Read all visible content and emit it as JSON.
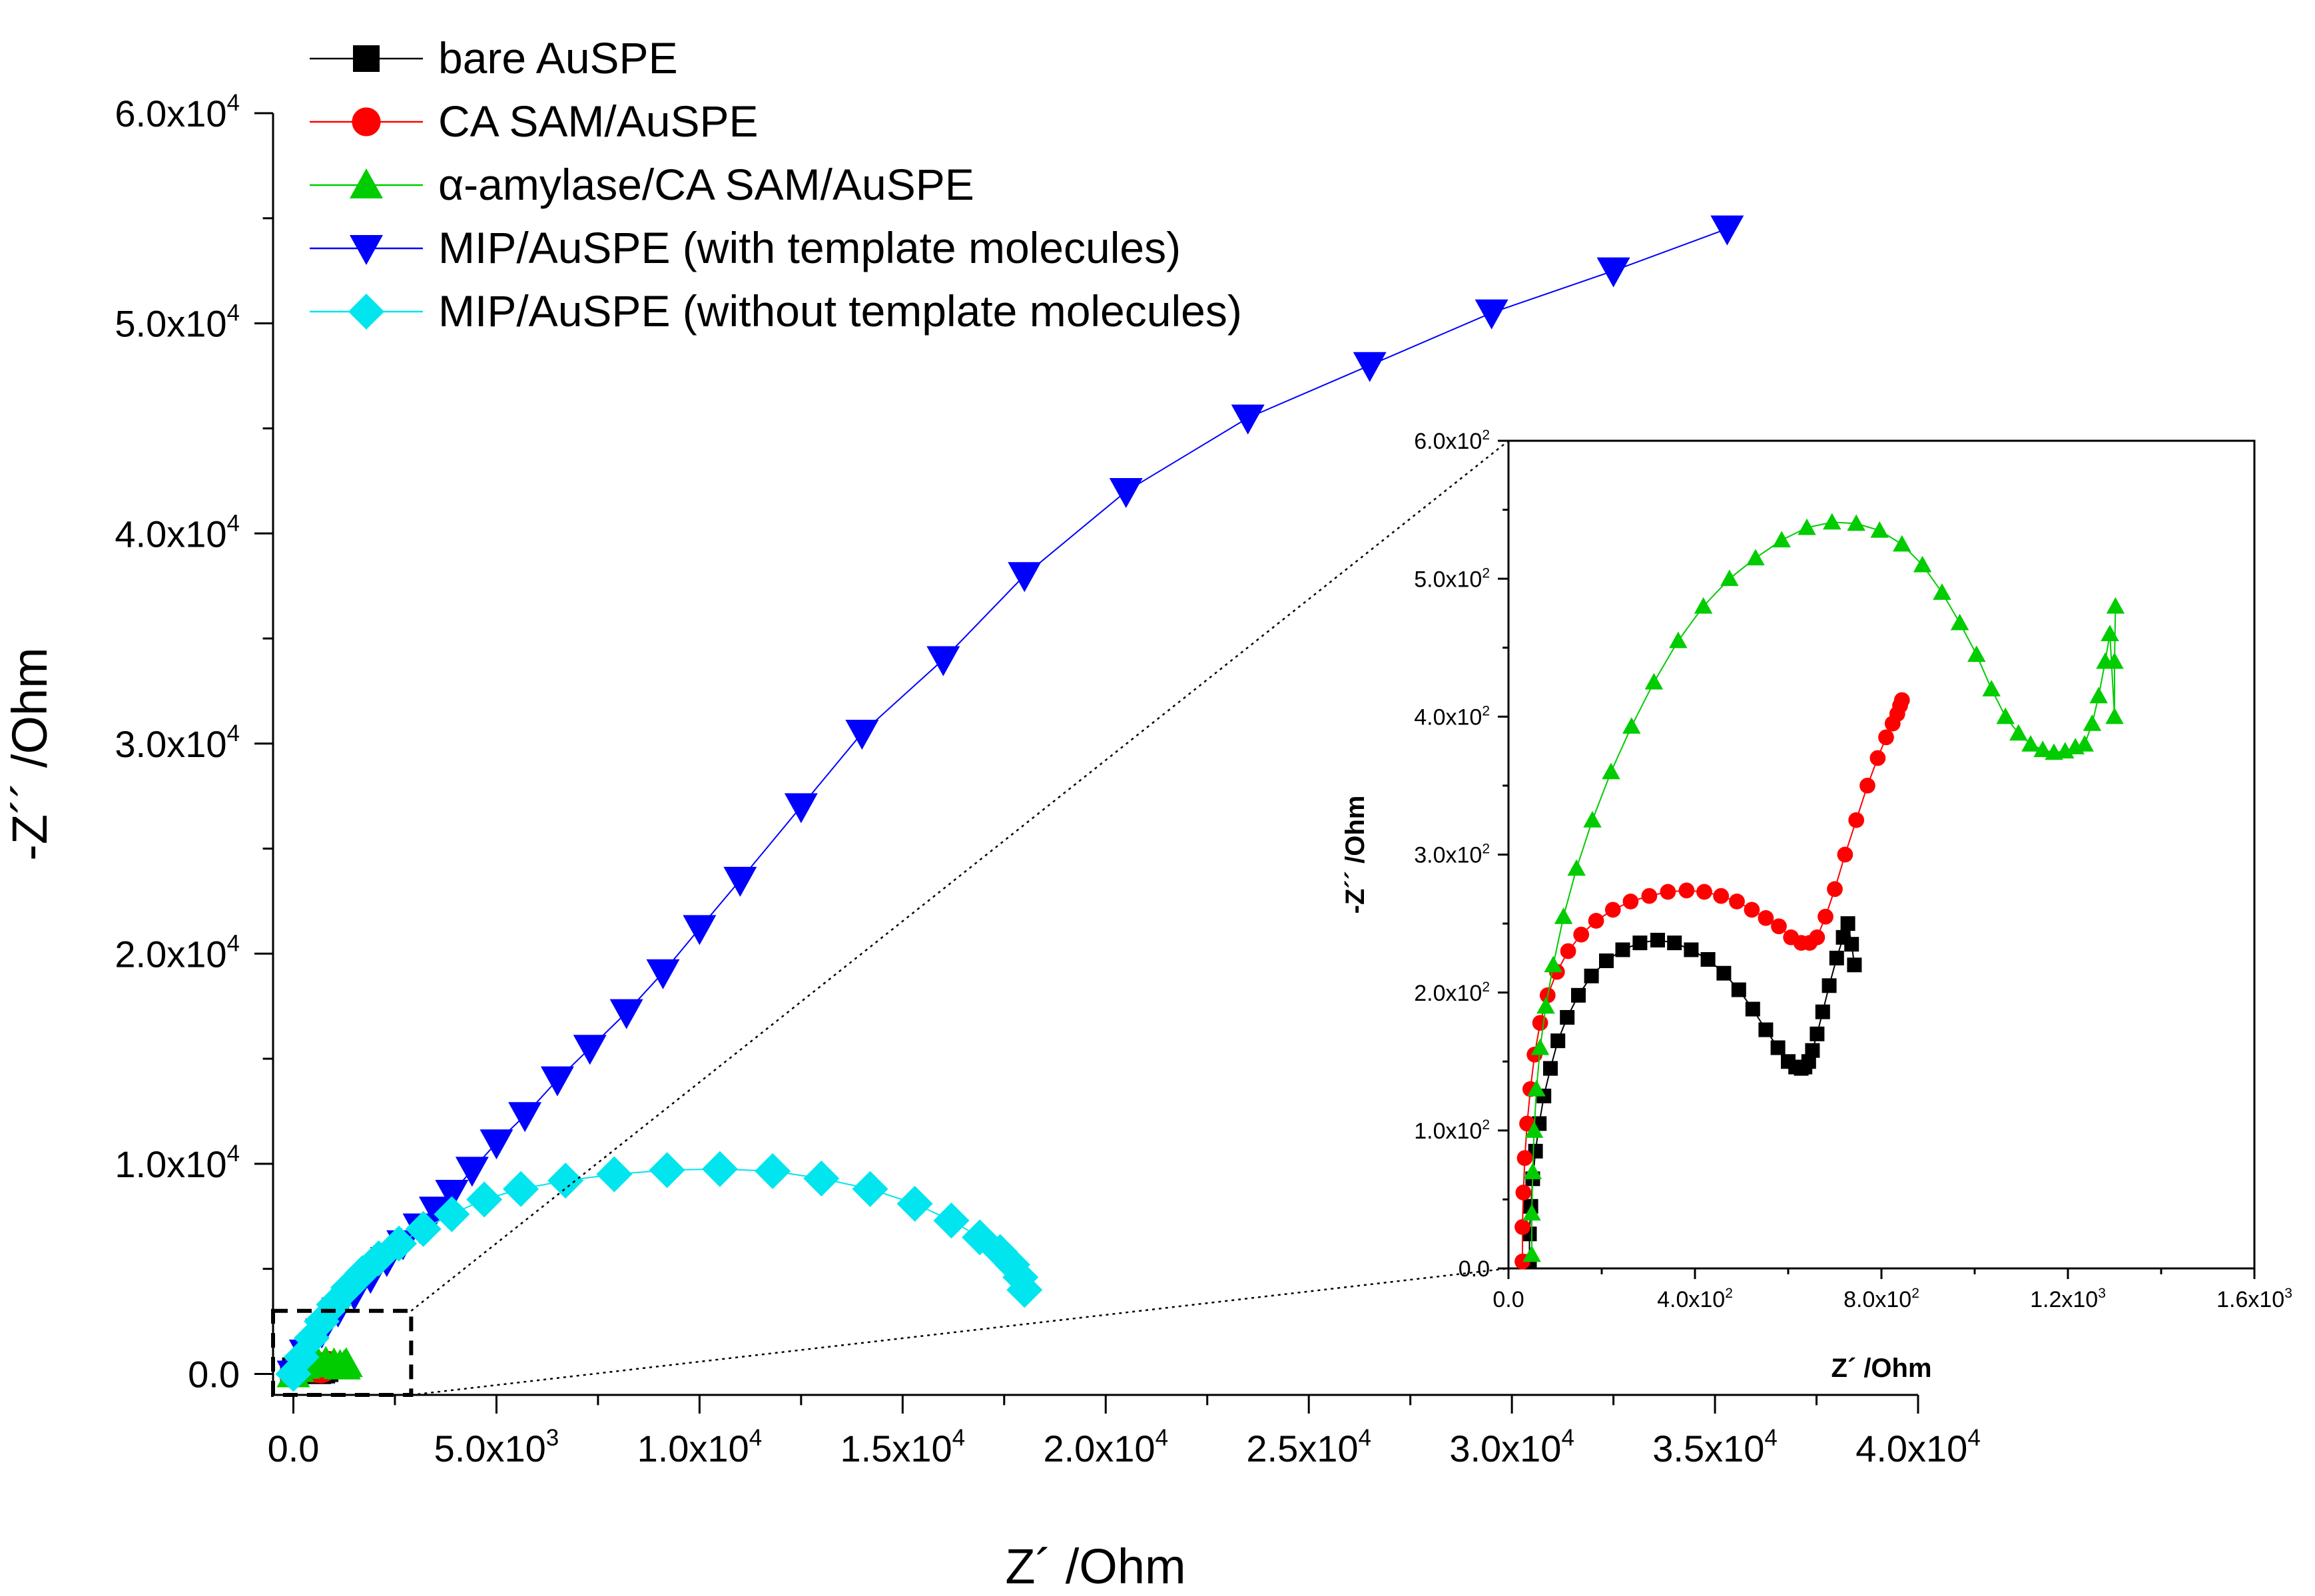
{
  "chart_data": [
    {
      "id": "main",
      "type": "scatter",
      "title": "",
      "xlabel": "Z´ /Ohm",
      "ylabel": "-Z´´ /Ohm",
      "xlim": [
        -500,
        40000
      ],
      "ylim": [
        -1000,
        60000
      ],
      "x_ticks": [
        0,
        5000,
        10000,
        15000,
        20000,
        25000,
        30000,
        35000,
        40000
      ],
      "y_ticks": [
        0,
        10000,
        20000,
        30000,
        40000,
        50000,
        60000
      ],
      "x_tick_labels": [
        {
          "m": "0.0",
          "e": ""
        },
        {
          "m": "5.0x10",
          "e": "3"
        },
        {
          "m": "1.0x10",
          "e": "4"
        },
        {
          "m": "1.5x10",
          "e": "4"
        },
        {
          "m": "2.0x10",
          "e": "4"
        },
        {
          "m": "2.5x10",
          "e": "4"
        },
        {
          "m": "3.0x10",
          "e": "4"
        },
        {
          "m": "3.5x10",
          "e": "4"
        },
        {
          "m": "4.0x10",
          "e": "4"
        }
      ],
      "y_tick_labels": [
        {
          "m": "0.0",
          "e": ""
        },
        {
          "m": "1.0x10",
          "e": "4"
        },
        {
          "m": "2.0x10",
          "e": "4"
        },
        {
          "m": "3.0x10",
          "e": "4"
        },
        {
          "m": "4.0x10",
          "e": "4"
        },
        {
          "m": "5.0x10",
          "e": "4"
        },
        {
          "m": "6.0x10",
          "e": "4"
        }
      ],
      "legend_position": "top-left",
      "zoom_box": {
        "x": [
          -500,
          2900
        ],
        "y": [
          -1000,
          3000
        ]
      },
      "series": [
        {
          "name": "bare AuSPE",
          "color": "#000000",
          "marker": "square",
          "x": [
            0,
            50,
            120,
            200,
            300,
            400,
            500,
            600,
            700,
            780
          ],
          "y": [
            0,
            150,
            220,
            240,
            225,
            190,
            160,
            150,
            180,
            250
          ]
        },
        {
          "name": "CA SAM/AuSPE",
          "color": "#ff0000",
          "marker": "circle",
          "x": [
            0,
            50,
            150,
            300,
            450,
            600,
            680,
            760,
            850
          ],
          "y": [
            0,
            180,
            260,
            275,
            270,
            250,
            240,
            320,
            410
          ]
        },
        {
          "name": "α-amylase/CA SAM/AuSPE",
          "color": "#00cc00",
          "marker": "triangle-up",
          "x": [
            0,
            100,
            250,
            400,
            600,
            800,
            1000,
            1150,
            1250,
            1300
          ],
          "y": [
            0,
            250,
            400,
            480,
            530,
            540,
            470,
            390,
            370,
            480
          ]
        },
        {
          "name": "MIP/AuSPE (with template molecules)",
          "color": "#0000ff",
          "marker": "triangle-down",
          "x": [
            0,
            300,
            700,
            1100,
            1500,
            1900,
            2300,
            2700,
            3100,
            3500,
            3900,
            4400,
            5000,
            5700,
            6500,
            7300,
            8200,
            9100,
            10000,
            11000,
            12500,
            14000,
            16000,
            18000,
            20500,
            23500,
            26500,
            29500,
            32500,
            35300
          ],
          "y": [
            0,
            1000,
            2000,
            3000,
            3800,
            4600,
            5400,
            6200,
            7000,
            7800,
            8600,
            9700,
            11000,
            12300,
            14000,
            15500,
            17200,
            19100,
            21200,
            23500,
            27000,
            30500,
            34000,
            38000,
            42000,
            45500,
            48000,
            50500,
            52500,
            54500
          ]
        },
        {
          "name": "MIP/AuSPE (without template molecules)",
          "color": "#00e5ee",
          "marker": "diamond",
          "x": [
            0,
            200,
            450,
            700,
            1000,
            1350,
            1700,
            2100,
            2600,
            3200,
            3900,
            4700,
            5600,
            6700,
            7900,
            9200,
            10500,
            11800,
            13000,
            14200,
            15300,
            16200,
            16900,
            17400,
            17700,
            17900,
            18000
          ],
          "y": [
            0,
            800,
            1700,
            2500,
            3300,
            4100,
            4800,
            5500,
            6200,
            6900,
            7600,
            8300,
            8800,
            9200,
            9500,
            9700,
            9750,
            9650,
            9300,
            8800,
            8100,
            7300,
            6500,
            5800,
            5200,
            4600,
            4000
          ]
        }
      ]
    },
    {
      "id": "inset",
      "type": "scatter",
      "title": "",
      "xlabel": "Z´ /Ohm",
      "ylabel": "-Z´´ /Ohm",
      "xlim": [
        0,
        1600
      ],
      "ylim": [
        0,
        600
      ],
      "x_ticks": [
        0,
        400,
        800,
        1200,
        1600
      ],
      "y_ticks": [
        0,
        100,
        200,
        300,
        400,
        500,
        600
      ],
      "x_tick_labels": [
        {
          "m": "0.0",
          "e": ""
        },
        {
          "m": "4.0x10",
          "e": "2"
        },
        {
          "m": "8.0x10",
          "e": "2"
        },
        {
          "m": "1.2x10",
          "e": "3"
        },
        {
          "m": "1.6x10",
          "e": "3"
        }
      ],
      "y_tick_labels": [
        {
          "m": "0.0",
          "e": ""
        },
        {
          "m": "1.0x10",
          "e": "2"
        },
        {
          "m": "2.0x10",
          "e": "2"
        },
        {
          "m": "3.0x10",
          "e": "2"
        },
        {
          "m": "4.0x10",
          "e": "2"
        },
        {
          "m": "5.0x10",
          "e": "2"
        },
        {
          "m": "6.0x10",
          "e": "2"
        }
      ],
      "series": [
        {
          "name": "bare AuSPE",
          "color": "#000000",
          "marker": "square",
          "x": [
            45,
            45,
            48,
            52,
            58,
            66,
            76,
            90,
            106,
            126,
            150,
            178,
            210,
            245,
            282,
            320,
            356,
            392,
            428,
            462,
            494,
            524,
            552,
            578,
            600,
            616,
            628,
            636,
            644,
            652,
            662,
            674,
            688,
            704,
            718,
            728,
            736,
            742
          ],
          "y": [
            5,
            25,
            45,
            65,
            85,
            105,
            125,
            145,
            165,
            182,
            198,
            212,
            223,
            231,
            236,
            238,
            236,
            231,
            224,
            214,
            202,
            188,
            173,
            160,
            150,
            146,
            145,
            146,
            150,
            158,
            170,
            186,
            205,
            225,
            240,
            250,
            235,
            220
          ]
        },
        {
          "name": "CA SAM/AuSPE",
          "color": "#ff0000",
          "marker": "circle",
          "x": [
            30,
            30,
            32,
            35,
            40,
            47,
            56,
            68,
            84,
            104,
            128,
            156,
            188,
            224,
            262,
            302,
            342,
            382,
            420,
            456,
            490,
            522,
            552,
            580,
            606,
            628,
            646,
            662,
            680,
            700,
            722,
            746,
            770,
            792,
            810,
            824,
            834,
            840,
            844
          ],
          "y": [
            5,
            30,
            55,
            80,
            105,
            130,
            155,
            178,
            198,
            215,
            230,
            242,
            252,
            260,
            266,
            270,
            273,
            274,
            273,
            270,
            266,
            260,
            254,
            248,
            240,
            236,
            236,
            240,
            255,
            275,
            300,
            325,
            350,
            370,
            385,
            395,
            402,
            408,
            412
          ]
        },
        {
          "name": "α-amylase/CA SAM/AuSPE",
          "color": "#00cc00",
          "marker": "triangle-up",
          "x": [
            50,
            50,
            52,
            55,
            60,
            68,
            80,
            96,
            118,
            146,
            180,
            220,
            264,
            312,
            364,
            418,
            474,
            530,
            586,
            640,
            694,
            746,
            796,
            844,
            888,
            930,
            968,
            1004,
            1036,
            1066,
            1094,
            1120,
            1146,
            1170,
            1194,
            1216,
            1236,
            1252,
            1266,
            1280,
            1290,
            1300,
            1300,
            1302
          ],
          "y": [
            10,
            40,
            70,
            100,
            130,
            160,
            190,
            220,
            255,
            290,
            325,
            360,
            393,
            425,
            455,
            480,
            500,
            515,
            528,
            537,
            541,
            540,
            535,
            525,
            510,
            490,
            468,
            445,
            420,
            400,
            388,
            380,
            376,
            374,
            375,
            378,
            380,
            395,
            415,
            440,
            460,
            400,
            440,
            480
          ]
        }
      ]
    }
  ]
}
